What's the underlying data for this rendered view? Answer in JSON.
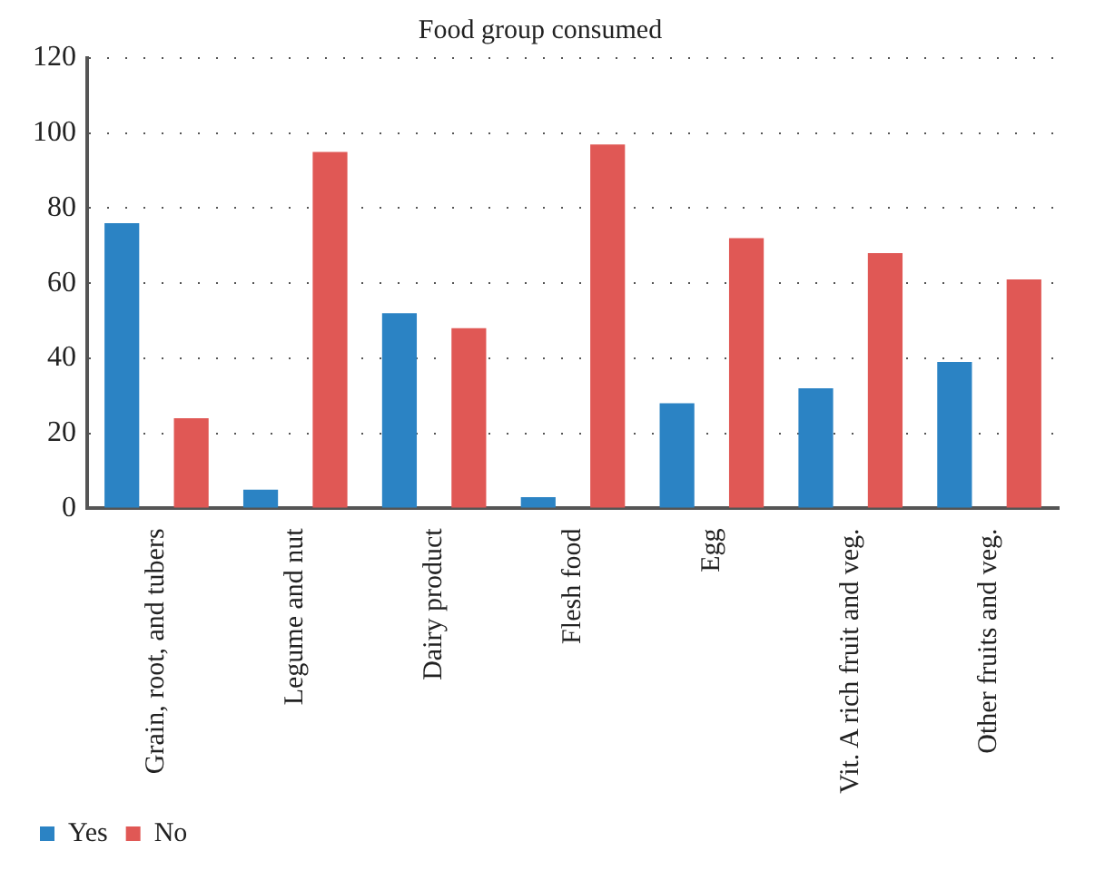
{
  "chart_data": {
    "type": "bar",
    "title": "Food group consumed",
    "categories": [
      "Grain, root, and tubers",
      "Legume and nut",
      "Dairy product",
      "Flesh food",
      "Egg",
      "Vit. A rich fruit and veg.",
      "Other fruits and veg."
    ],
    "series": [
      {
        "name": "Yes",
        "color": "#2b83c4",
        "values": [
          76,
          5,
          52,
          3,
          28,
          32,
          39
        ]
      },
      {
        "name": "No",
        "color": "#e05855",
        "values": [
          24,
          95,
          48,
          97,
          72,
          68,
          61
        ]
      }
    ],
    "ylim": [
      0,
      120
    ],
    "yticks": [
      0,
      20,
      40,
      60,
      80,
      100,
      120
    ],
    "grid": "y",
    "legend": "bottom left"
  }
}
